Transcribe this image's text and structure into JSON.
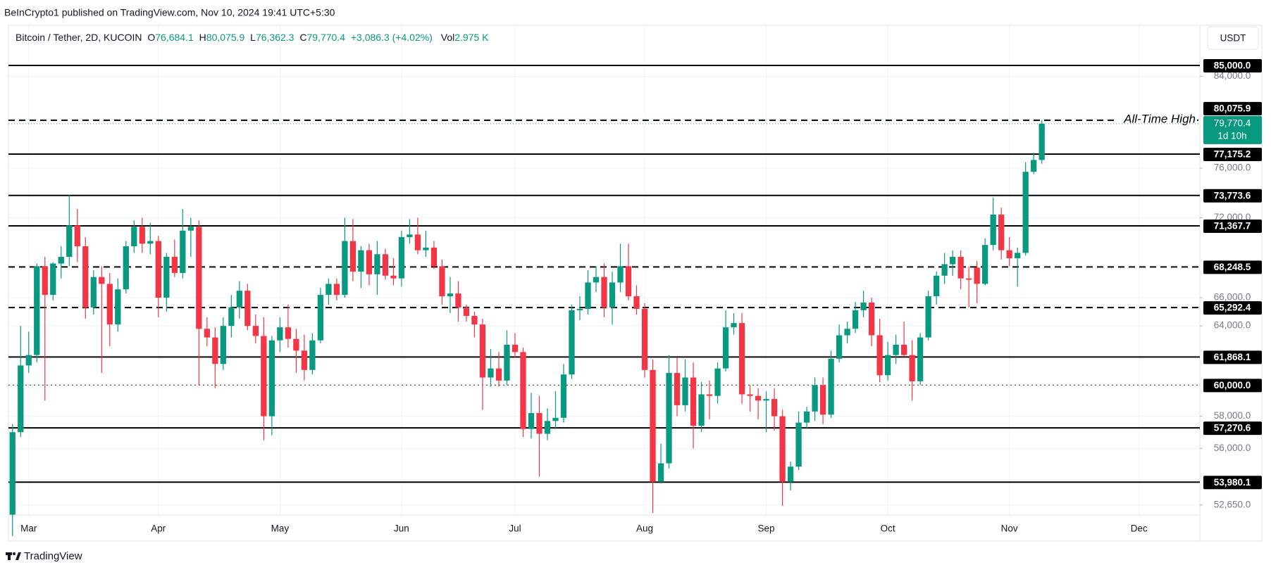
{
  "chart_data": {
    "type": "candlestick",
    "publisher_line": "BeInCrypto1 published on TradingView.com, Nov 10, 2024 19:41 UTC+5:30",
    "symbol": "Bitcoin / Tether, 2D, KUCOIN",
    "legend_items": [
      {
        "key": "O",
        "value": "76,684.1"
      },
      {
        "key": "H",
        "value": "80,075.9"
      },
      {
        "key": "L",
        "value": "76,362.3"
      },
      {
        "key": "C",
        "value": "79,770.4"
      }
    ],
    "change": "+3,086.3 (+4.02%)",
    "volume": {
      "key": "Vol",
      "value": "2.975 K"
    },
    "currency": "USDT",
    "brand": "TradingView",
    "up_color": "#089981",
    "down_color": "#f23645",
    "log_scale": true,
    "grid": true,
    "categories": [
      null,
      null,
      "Mar",
      null,
      null,
      null,
      null,
      null,
      null,
      null,
      null,
      null,
      null,
      null,
      null,
      null,
      null,
      null,
      "Apr",
      null,
      null,
      null,
      null,
      null,
      null,
      null,
      null,
      null,
      null,
      null,
      null,
      null,
      null,
      "May",
      null,
      null,
      null,
      null,
      null,
      null,
      null,
      null,
      null,
      null,
      null,
      null,
      null,
      null,
      "Jun",
      null,
      null,
      null,
      null,
      null,
      null,
      null,
      null,
      null,
      null,
      null,
      null,
      null,
      "Jul",
      null,
      null,
      null,
      null,
      null,
      null,
      null,
      null,
      null,
      null,
      null,
      null,
      null,
      null,
      null,
      "Aug",
      null,
      null,
      null,
      null,
      null,
      null,
      null,
      null,
      null,
      null,
      null,
      null,
      null,
      null,
      "Sep",
      null,
      null,
      null,
      null,
      null,
      null,
      null,
      null,
      null,
      null,
      null,
      null,
      null,
      null,
      "Oct",
      null,
      null,
      null,
      null,
      null,
      null,
      null,
      null,
      null,
      null,
      null,
      null,
      null,
      null,
      "Nov",
      null,
      null,
      null,
      null,
      null,
      null,
      null,
      null,
      null,
      null,
      null,
      null,
      null,
      null,
      null,
      "Dec",
      null,
      null,
      null,
      null,
      null,
      null,
      null
    ],
    "open": [
      52100,
      57000,
      61300,
      62000,
      68300,
      66200,
      68500,
      69000,
      71400,
      69800,
      65300,
      67500,
      67000,
      64100,
      66600,
      69800,
      71300,
      70000,
      70200,
      66000,
      69000,
      67800,
      71000,
      71300,
      63800,
      63200,
      61400,
      64000,
      65300,
      66500,
      64000,
      63300,
      58000,
      63000,
      63900,
      63100,
      62300,
      61000,
      63000,
      66200,
      67000,
      66200,
      70200,
      67900,
      69500,
      67700,
      69200,
      67600,
      67400,
      70500,
      70700,
      69500,
      69700,
      68300,
      66100,
      66300,
      65300,
      64700,
      64100,
      60500,
      61100,
      60300,
      62700,
      62200,
      57200,
      58200,
      56900,
      57700,
      57900,
      60700,
      65100,
      65200,
      67100,
      67500,
      65300,
      67100,
      68300,
      66100,
      65200,
      61000,
      54000,
      55100,
      60800,
      58700,
      60500,
      57400,
      59400,
      59300,
      61100,
      63900,
      64200,
      59400,
      59300,
      59000,
      59100,
      58000,
      54000,
      54900,
      57600,
      58300,
      60000,
      58100,
      61750,
      63350,
      63800,
      65100,
      65650,
      63350,
      60650,
      62000,
      62700,
      62000,
      60250,
      63200,
      66100,
      67600,
      68450,
      69000,
      67400,
      68200,
      67000,
      69900,
      72250,
      69500,
      68900,
      69300,
      75700,
      76684.1,
      null,
      null,
      null,
      null,
      null,
      null,
      null,
      null,
      null,
      null,
      null,
      null,
      null,
      null,
      null,
      null,
      null,
      null,
      null
    ],
    "high": [
      57500,
      64000,
      63600,
      68500,
      69000,
      68600,
      69800,
      73800,
      72700,
      70500,
      68000,
      68300,
      67800,
      67400,
      70200,
      71800,
      72000,
      71600,
      70600,
      69300,
      70300,
      72700,
      72000,
      71800,
      64600,
      63900,
      64600,
      66200,
      67200,
      67000,
      64800,
      64600,
      63300,
      64600,
      65500,
      63800,
      63400,
      63500,
      66700,
      67400,
      67400,
      72000,
      71900,
      69800,
      70000,
      70200,
      69600,
      68900,
      71000,
      71900,
      72000,
      71000,
      70200,
      68800,
      67500,
      67200,
      65500,
      65000,
      64500,
      62400,
      62200,
      63700,
      63500,
      62500,
      59500,
      59300,
      58500,
      59600,
      61400,
      65500,
      66100,
      68000,
      68300,
      68500,
      67900,
      70000,
      70000,
      66900,
      65600,
      61700,
      56300,
      62000,
      61800,
      61700,
      61500,
      60200,
      60300,
      61500,
      65100,
      64900,
      64900,
      60000,
      59800,
      59600,
      59800,
      58400,
      55200,
      58300,
      58600,
      60500,
      60500,
      62300,
      64100,
      64300,
      65700,
      66500,
      66000,
      64500,
      62900,
      63400,
      64300,
      63000,
      63500,
      66500,
      67900,
      69300,
      69500,
      69500,
      68300,
      68700,
      70400,
      73600,
      72800,
      70500,
      69700,
      76500,
      77300,
      80075.9,
      null,
      null,
      null,
      null,
      null,
      null,
      null,
      null,
      null,
      null,
      null,
      null,
      null,
      null,
      null,
      null,
      null,
      null,
      null
    ],
    "low": [
      50900,
      56700,
      60800,
      61500,
      59000,
      65800,
      67400,
      68300,
      68600,
      64500,
      64800,
      60800,
      62600,
      63600,
      66300,
      69300,
      69300,
      69200,
      64600,
      65000,
      67500,
      67400,
      69000,
      60000,
      62600,
      59800,
      61000,
      63200,
      64500,
      63700,
      62800,
      56500,
      56800,
      62200,
      62500,
      60800,
      60300,
      60700,
      62800,
      65500,
      65800,
      66000,
      67200,
      66700,
      66900,
      66200,
      67300,
      66900,
      66800,
      70000,
      69200,
      69000,
      68100,
      65500,
      64900,
      64300,
      64300,
      63200,
      58400,
      59900,
      59900,
      60000,
      61800,
      56700,
      56600,
      54300,
      56500,
      57200,
      57600,
      60400,
      64400,
      64800,
      66400,
      64600,
      64100,
      66400,
      65800,
      64800,
      60500,
      52200,
      53900,
      54800,
      58000,
      58300,
      56000,
      57000,
      57800,
      58800,
      60900,
      63400,
      58800,
      58300,
      57800,
      57000,
      57100,
      52600,
      53500,
      54700,
      57200,
      57700,
      57500,
      57900,
      61500,
      62800,
      63500,
      64600,
      62600,
      60200,
      60300,
      61400,
      61900,
      59000,
      60000,
      63000,
      65500,
      67000,
      67600,
      66600,
      65300,
      65600,
      66900,
      69500,
      68800,
      68300,
      66800,
      69100,
      75500,
      76362.3,
      null,
      null,
      null,
      null,
      null,
      null,
      null,
      null,
      null,
      null,
      null,
      null,
      null,
      null,
      null,
      null,
      null,
      null,
      null
    ],
    "close": [
      57000,
      61300,
      62000,
      68300,
      66200,
      68500,
      69000,
      71400,
      69800,
      65300,
      67500,
      67000,
      64100,
      66600,
      69800,
      71300,
      70000,
      70200,
      66000,
      69000,
      67800,
      71000,
      71300,
      63800,
      63200,
      61400,
      64000,
      65300,
      66500,
      64000,
      63300,
      58000,
      63000,
      63900,
      63100,
      62300,
      61000,
      63000,
      66200,
      67000,
      66200,
      70200,
      67900,
      69500,
      67700,
      69200,
      67600,
      67400,
      70500,
      70700,
      69500,
      69700,
      68300,
      66100,
      66300,
      65300,
      64700,
      64100,
      60500,
      61100,
      60300,
      62700,
      62200,
      57200,
      58200,
      56900,
      57700,
      57900,
      60700,
      65100,
      65200,
      67100,
      67500,
      65300,
      67100,
      68300,
      66100,
      65200,
      61000,
      54000,
      55100,
      60800,
      58700,
      60500,
      57400,
      59400,
      59300,
      61100,
      63900,
      64200,
      59400,
      59300,
      59000,
      59100,
      58000,
      54000,
      54900,
      57600,
      58300,
      60000,
      58100,
      61750,
      63350,
      63800,
      65100,
      65650,
      63350,
      60650,
      62000,
      62700,
      62000,
      60250,
      63200,
      66100,
      67600,
      68450,
      69000,
      67400,
      67300,
      67000,
      69900,
      72250,
      69500,
      68900,
      69300,
      75700,
      76684.1,
      79770.4,
      null,
      null,
      null,
      null,
      null,
      null,
      null,
      null,
      null,
      null,
      null,
      null,
      null,
      null,
      null,
      null,
      null,
      null,
      null
    ],
    "ylim": [
      52080,
      88800
    ],
    "yticks": [
      {
        "value": 84000,
        "label": "84,000.0"
      },
      {
        "value": 76000,
        "label": "76,000.0"
      },
      {
        "value": 72000,
        "label": "72,000.0"
      },
      {
        "value": 66000,
        "label": "66,000.0"
      },
      {
        "value": 64000,
        "label": "64,000.0"
      },
      {
        "value": 58000,
        "label": "58,000.0"
      },
      {
        "value": 56000,
        "label": "56,000.0"
      },
      {
        "value": 52650,
        "label": "52,650.0"
      }
    ],
    "levels": [
      {
        "value": 85000,
        "label": "85,000.0",
        "style": "solid"
      },
      {
        "value": 80075.9,
        "label": "80,075.9",
        "style": "dashed"
      },
      {
        "value": 77175.2,
        "label": "77,175.2",
        "style": "solid"
      },
      {
        "value": 73773.6,
        "label": "73,773.6",
        "style": "solid"
      },
      {
        "value": 71367.7,
        "label": "71,367.7",
        "style": "solid"
      },
      {
        "value": 68248.5,
        "label": "68,248.5",
        "style": "dashed"
      },
      {
        "value": 65292.4,
        "label": "65,292.4",
        "style": "dashed"
      },
      {
        "value": 61868.1,
        "label": "61,868.1",
        "style": "solid"
      },
      {
        "value": 60000,
        "label": "60,000.0",
        "style": "dotted"
      },
      {
        "value": 57270.6,
        "label": "57,270.6",
        "style": "solid"
      },
      {
        "value": 53980.1,
        "label": "53,980.1",
        "style": "solid"
      }
    ],
    "annotation": {
      "text": "All-Time High",
      "value": 80075.9
    },
    "last_price": {
      "value": 79770.4,
      "label": "79,770.4",
      "countdown": "1d 10h",
      "color": "#089981"
    }
  }
}
